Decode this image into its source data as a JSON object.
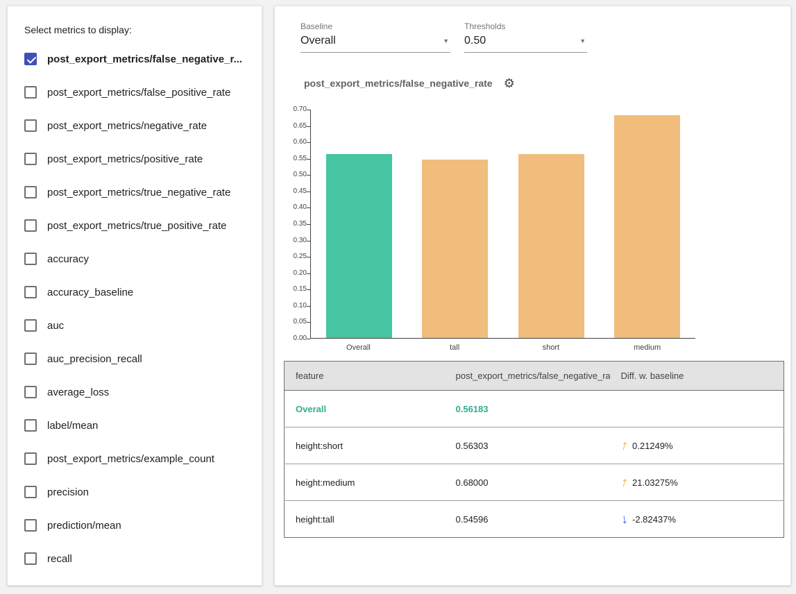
{
  "left_panel": {
    "title": "Select metrics to display:",
    "metrics": [
      {
        "label": "post_export_metrics/false_negative_r...",
        "checked": true
      },
      {
        "label": "post_export_metrics/false_positive_rate",
        "checked": false
      },
      {
        "label": "post_export_metrics/negative_rate",
        "checked": false
      },
      {
        "label": "post_export_metrics/positive_rate",
        "checked": false
      },
      {
        "label": "post_export_metrics/true_negative_rate",
        "checked": false
      },
      {
        "label": "post_export_metrics/true_positive_rate",
        "checked": false
      },
      {
        "label": "accuracy",
        "checked": false
      },
      {
        "label": "accuracy_baseline",
        "checked": false
      },
      {
        "label": "auc",
        "checked": false
      },
      {
        "label": "auc_precision_recall",
        "checked": false
      },
      {
        "label": "average_loss",
        "checked": false
      },
      {
        "label": "label/mean",
        "checked": false
      },
      {
        "label": "post_export_metrics/example_count",
        "checked": false
      },
      {
        "label": "precision",
        "checked": false
      },
      {
        "label": "prediction/mean",
        "checked": false
      },
      {
        "label": "recall",
        "checked": false
      }
    ]
  },
  "controls": {
    "baseline": {
      "label": "Baseline",
      "value": "Overall"
    },
    "thresholds": {
      "label": "Thresholds",
      "value": "0.50"
    }
  },
  "chart_data": {
    "type": "bar",
    "title": "post_export_metrics/false_negative_rate",
    "categories": [
      "Overall",
      "tall",
      "short",
      "medium"
    ],
    "values": [
      0.56183,
      0.54596,
      0.56303,
      0.68
    ],
    "bar_colors": [
      "#45c5a2",
      "#f1bd7c",
      "#f1bd7c",
      "#f1bd7c"
    ],
    "ylim": [
      0,
      0.7
    ],
    "ytick_step": 0.05,
    "xlabel": "",
    "ylabel": "",
    "grid": false,
    "legend": false
  },
  "table": {
    "headers": [
      "feature",
      "post_export_metrics/false_negative_rat...",
      "Diff. w. baseline"
    ],
    "rows": [
      {
        "feature": "Overall",
        "value": "0.56183",
        "diff": null,
        "direction": null,
        "is_baseline": true
      },
      {
        "feature": "height:short",
        "value": "0.56303",
        "diff": "0.21249%",
        "direction": "up",
        "is_baseline": false
      },
      {
        "feature": "height:medium",
        "value": "0.68000",
        "diff": "21.03275%",
        "direction": "up",
        "is_baseline": false
      },
      {
        "feature": "height:tall",
        "value": "0.54596",
        "diff": "-2.82437%",
        "direction": "down",
        "is_baseline": false
      }
    ]
  },
  "colors": {
    "baseline_bar": "#45c5a2",
    "slice_bar": "#f1bd7c",
    "baseline_text": "#2fae8e",
    "arrow_up": "#f5a623",
    "arrow_down": "#3d5afe",
    "checkbox_checked": "#3f51b5"
  }
}
